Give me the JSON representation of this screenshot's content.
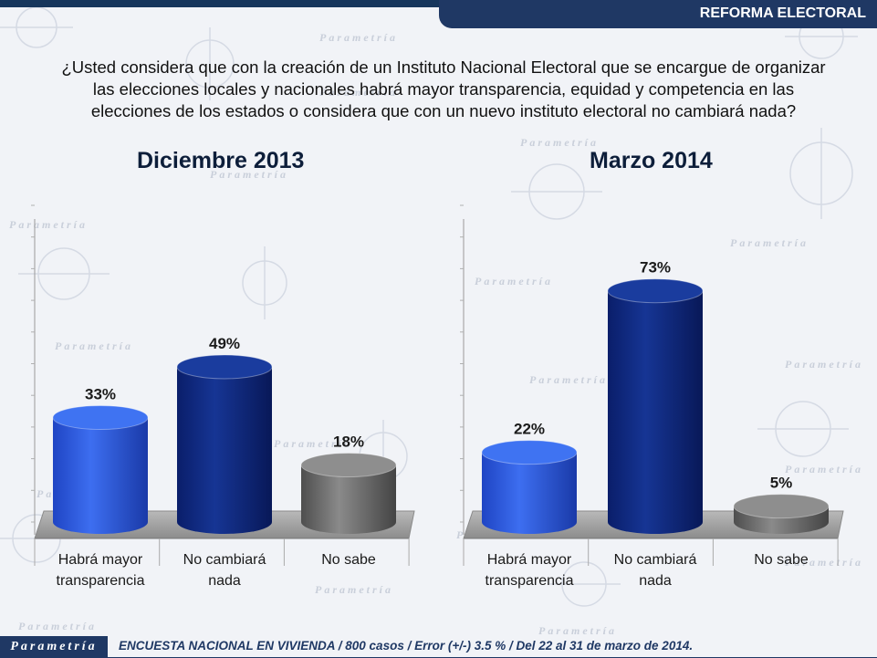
{
  "header": {
    "tag": "REFORMA ELECTORAL"
  },
  "question": "¿Usted considera que con la creación de un Instituto Nacional Electoral que se encargue de organizar las elecciones locales y nacionales habrá mayor transparencia, equidad y competencia en las elecciones de los estados o considera que con un nuevo instituto electoral no cambiará nada?",
  "question_lines": [
    "¿Usted considera que con la creación de un Instituto Nacional Electoral que se encargue de organizar",
    "las elecciones locales y nacionales habrá mayor transparencia, equidad y competencia en las",
    "elecciones de los estados o considera que con un nuevo instituto electoral no cambiará nada?"
  ],
  "colors": {
    "accent": "#1f3864",
    "bar_light": "#2f5fe0",
    "bar_dark": "#0f2a86",
    "bar_gray": "#6b6b6b"
  },
  "chart_data": [
    {
      "type": "bar",
      "title": "Diciembre 2013",
      "categories": [
        [
          "Habrá mayor",
          "transparencia"
        ],
        [
          "No cambiará",
          "nada"
        ],
        [
          "No sabe"
        ]
      ],
      "values": [
        33,
        49,
        18
      ],
      "labels": [
        "33%",
        "49%",
        "18%"
      ],
      "ylim": [
        0,
        100
      ]
    },
    {
      "type": "bar",
      "title": "Marzo 2014",
      "categories": [
        [
          "Habrá mayor",
          "transparencia"
        ],
        [
          "No cambiará",
          "nada"
        ],
        [
          "No sabe"
        ]
      ],
      "values": [
        22,
        73,
        5
      ],
      "labels": [
        "22%",
        "73%",
        "5%"
      ],
      "ylim": [
        0,
        100
      ]
    }
  ],
  "footer": {
    "logo": "Parametría",
    "note": "ENCUESTA NACIONAL EN VIVIENDA / 800 casos / Error (+/-) 3.5 % / Del 22 al 31 de marzo de 2014."
  },
  "watermark": {
    "text": "Parametría"
  }
}
